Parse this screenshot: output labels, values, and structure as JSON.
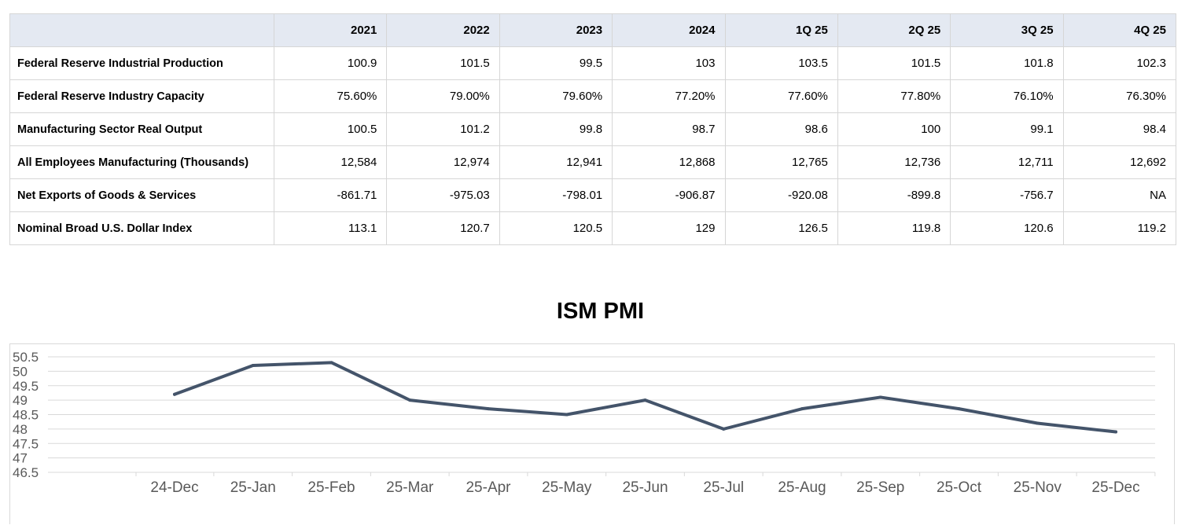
{
  "table": {
    "columns": [
      "2021",
      "2022",
      "2023",
      "2024",
      "1Q 25",
      "2Q 25",
      "3Q 25",
      "4Q 25"
    ],
    "rows": [
      {
        "label": "Federal Reserve Industrial Production",
        "values": [
          "100.9",
          "101.5",
          "99.5",
          "103",
          "103.5",
          "101.5",
          "101.8",
          "102.3"
        ]
      },
      {
        "label": "Federal Reserve Industry Capacity",
        "values": [
          "75.60%",
          "79.00%",
          "79.60%",
          "77.20%",
          "77.60%",
          "77.80%",
          "76.10%",
          "76.30%"
        ]
      },
      {
        "label": "Manufacturing Sector Real Output",
        "values": [
          "100.5",
          "101.2",
          "99.8",
          "98.7",
          "98.6",
          "100",
          "99.1",
          "98.4"
        ]
      },
      {
        "label": "All Employees Manufacturing (Thousands)",
        "values": [
          "12,584",
          "12,974",
          "12,941",
          "12,868",
          "12,765",
          "12,736",
          "12,711",
          "12,692"
        ]
      },
      {
        "label": "Net Exports of Goods & Services",
        "values": [
          "-861.71",
          "-975.03",
          "-798.01",
          "-906.87",
          "-920.08",
          "-899.8",
          "-756.7",
          "NA"
        ]
      },
      {
        "label": "Nominal Broad U.S. Dollar Index",
        "values": [
          "113.1",
          "120.7",
          "120.5",
          "129",
          "126.5",
          "119.8",
          "120.6",
          "119.2"
        ]
      }
    ]
  },
  "chart_data": {
    "type": "line",
    "title": "ISM PMI",
    "categories": [
      "24-Dec",
      "25-Jan",
      "25-Feb",
      "25-Mar",
      "25-Apr",
      "25-May",
      "25-Jun",
      "25-Jul",
      "25-Aug",
      "25-Sep",
      "25-Oct",
      "25-Nov",
      "25-Dec"
    ],
    "series": [
      {
        "values": [
          49.2,
          50.2,
          50.3,
          49.0,
          48.7,
          48.5,
          49.0,
          48.0,
          48.7,
          49.1,
          48.7,
          48.2,
          47.9
        ]
      }
    ],
    "ylim": [
      46.5,
      50.5
    ],
    "yticks": [
      "50.5",
      "50",
      "49.5",
      "49",
      "48.5",
      "48",
      "47.5",
      "47",
      "46.5"
    ],
    "grid": true,
    "line_color": "#44546a"
  }
}
